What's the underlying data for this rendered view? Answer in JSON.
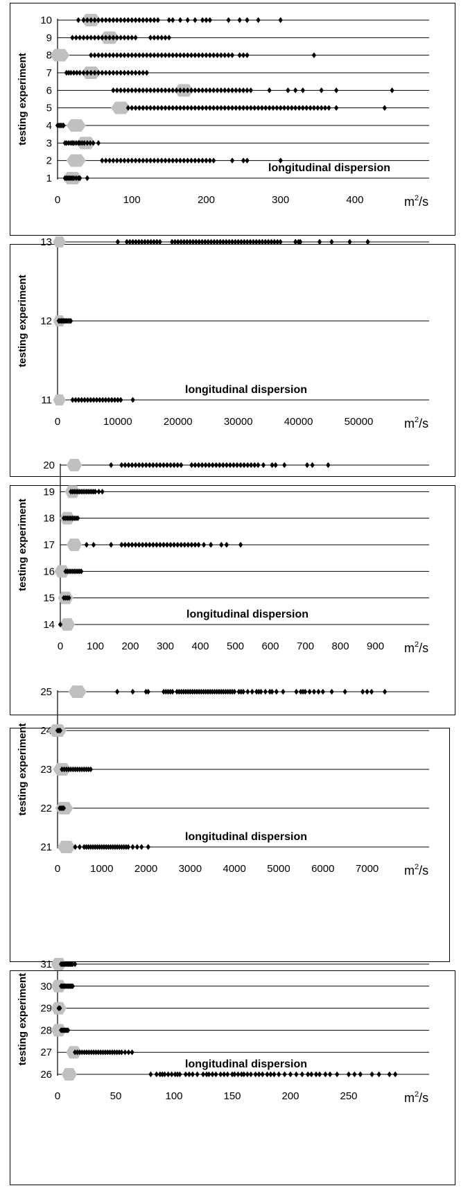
{
  "units_label": "m",
  "units_sup": "2",
  "units_tail": "/s",
  "ylabel": "testing experiment",
  "annotation": "longitudinal dispersion",
  "colors": {
    "points": "#000000",
    "marker": "#c0c0c0",
    "axis": "#000000",
    "gridline": "#000000"
  },
  "chart_data": [
    {
      "type": "scatter",
      "title": "",
      "xlabel": "m2/s",
      "ylabel": "testing experiment",
      "xlim": [
        0,
        470
      ],
      "xticks": [
        0,
        100,
        200,
        300,
        400
      ],
      "xtick_labels": [
        "0",
        "100",
        "200",
        "300",
        "400"
      ],
      "ylim": [
        1,
        10
      ],
      "yticks": [
        1,
        2,
        3,
        4,
        5,
        6,
        7,
        8,
        9,
        10
      ],
      "ytick_labels": [
        "1",
        "2",
        "3",
        "4",
        "5",
        "6",
        "7",
        "8",
        "9",
        "10"
      ],
      "grid": "horizontal",
      "annotation": "longitudinal dispersion",
      "series": [
        {
          "y": 10,
          "marker_x": 45,
          "points": [
            28,
            35,
            40,
            45,
            50,
            55,
            60,
            65,
            70,
            75,
            80,
            85,
            90,
            95,
            100,
            105,
            110,
            115,
            120,
            125,
            130,
            135,
            150,
            155,
            165,
            175,
            185,
            195,
            200,
            205,
            230,
            245,
            255,
            270,
            300
          ]
        },
        {
          "y": 9,
          "marker_x": 70,
          "points": [
            20,
            25,
            30,
            35,
            40,
            45,
            50,
            55,
            60,
            65,
            70,
            75,
            80,
            85,
            90,
            95,
            100,
            105,
            125,
            130,
            135,
            140,
            145,
            150
          ]
        },
        {
          "y": 8,
          "marker_x": 3,
          "points": [
            45,
            50,
            55,
            60,
            65,
            70,
            75,
            80,
            85,
            90,
            95,
            100,
            105,
            110,
            115,
            120,
            125,
            130,
            135,
            140,
            145,
            150,
            155,
            160,
            165,
            170,
            175,
            180,
            185,
            190,
            195,
            200,
            205,
            210,
            215,
            220,
            225,
            230,
            235,
            245,
            250,
            255,
            345
          ]
        },
        {
          "y": 7,
          "marker_x": 45,
          "points": [
            12,
            15,
            18,
            22,
            26,
            30,
            35,
            40,
            45,
            50,
            55,
            60,
            65,
            70,
            75,
            80,
            85,
            90,
            95,
            100,
            105,
            110,
            115,
            120
          ]
        },
        {
          "y": 6,
          "marker_x": 170,
          "points": [
            75,
            80,
            85,
            90,
            95,
            100,
            105,
            110,
            115,
            120,
            125,
            130,
            135,
            140,
            145,
            150,
            155,
            160,
            165,
            170,
            175,
            180,
            185,
            190,
            195,
            200,
            205,
            210,
            215,
            220,
            225,
            230,
            235,
            240,
            245,
            250,
            255,
            260,
            285,
            310,
            320,
            330,
            355,
            375,
            450
          ]
        },
        {
          "y": 5,
          "marker_x": 85,
          "points": [
            95,
            100,
            105,
            110,
            115,
            120,
            125,
            130,
            135,
            140,
            145,
            150,
            155,
            160,
            165,
            170,
            175,
            180,
            185,
            190,
            195,
            200,
            205,
            210,
            215,
            220,
            225,
            230,
            235,
            240,
            245,
            250,
            255,
            260,
            265,
            270,
            275,
            280,
            285,
            290,
            295,
            300,
            305,
            310,
            315,
            320,
            325,
            330,
            335,
            340,
            345,
            350,
            355,
            360,
            365,
            375,
            440
          ]
        },
        {
          "y": 4,
          "marker_x": 25,
          "points": [
            0,
            2,
            4,
            6,
            8
          ]
        },
        {
          "y": 3,
          "marker_x": 38,
          "points": [
            10,
            12,
            15,
            18,
            20,
            22,
            25,
            28,
            30,
            33,
            36,
            40,
            44,
            48,
            55
          ]
        },
        {
          "y": 2,
          "marker_x": 25,
          "points": [
            60,
            65,
            70,
            75,
            80,
            85,
            90,
            95,
            100,
            105,
            110,
            115,
            120,
            125,
            130,
            135,
            140,
            145,
            150,
            155,
            160,
            165,
            170,
            175,
            180,
            185,
            190,
            195,
            200,
            205,
            210,
            235,
            250,
            255,
            300
          ]
        },
        {
          "y": 1,
          "marker_x": 20,
          "points": [
            10,
            12,
            14,
            16,
            18,
            20,
            22,
            25,
            28,
            30,
            40
          ]
        }
      ]
    },
    {
      "type": "scatter",
      "title": "",
      "xlabel": "m2/s",
      "ylabel": "testing experiment",
      "xlim": [
        0,
        58000
      ],
      "xticks": [
        0,
        10000,
        20000,
        30000,
        40000,
        50000
      ],
      "xtick_labels": [
        "0",
        "10000",
        "20000",
        "30000",
        "40000",
        "50000"
      ],
      "ylim": [
        11,
        13
      ],
      "yticks": [
        11,
        12,
        13
      ],
      "ytick_labels": [
        "11",
        "12",
        "13"
      ],
      "grid": "horizontal",
      "annotation": "longitudinal dispersion",
      "series": [
        {
          "y": 13,
          "marker_x": 300,
          "points": [
            10000,
            11500,
            12000,
            12500,
            13000,
            13500,
            14000,
            14500,
            15000,
            15500,
            16000,
            16500,
            17000,
            19000,
            19500,
            20000,
            20500,
            21000,
            21500,
            22000,
            22500,
            23000,
            23500,
            24000,
            24500,
            25000,
            25500,
            26000,
            26500,
            27000,
            27500,
            28000,
            28500,
            29000,
            29500,
            30000,
            30500,
            31000,
            31500,
            32000,
            32500,
            33000,
            33500,
            34000,
            34500,
            35000,
            35500,
            36000,
            36500,
            37000,
            39500,
            40000,
            40300,
            43500,
            45500,
            48500,
            51500
          ]
        },
        {
          "y": 12,
          "marker_x": 300,
          "points": [
            200,
            400,
            600,
            800,
            1000,
            1200,
            1400,
            1600,
            1800,
            2000,
            2200
          ]
        },
        {
          "y": 11,
          "marker_x": 300,
          "points": [
            2500,
            3000,
            3500,
            4000,
            4500,
            5000,
            5500,
            6000,
            6500,
            7000,
            7500,
            8000,
            8500,
            9000,
            9500,
            10000,
            10500,
            12500
          ]
        }
      ]
    },
    {
      "type": "scatter",
      "title": "",
      "xlabel": "m2/s",
      "ylabel": "testing experiment",
      "xlim": [
        0,
        990
      ],
      "xticks": [
        0,
        100,
        200,
        300,
        400,
        500,
        600,
        700,
        800,
        900
      ],
      "xtick_labels": [
        "0",
        "100",
        "200",
        "300",
        "400",
        "500",
        "600",
        "700",
        "800",
        "900"
      ],
      "ylim": [
        14,
        20
      ],
      "yticks": [
        14,
        15,
        16,
        17,
        18,
        19,
        20
      ],
      "ytick_labels": [
        "14",
        "15",
        "16",
        "17",
        "18",
        "19",
        "20"
      ],
      "grid": "horizontal",
      "annotation": "longitudinal dispersion",
      "series": [
        {
          "y": 20,
          "marker_x": 40,
          "points": [
            145,
            175,
            185,
            195,
            205,
            215,
            225,
            235,
            245,
            255,
            265,
            275,
            285,
            295,
            305,
            315,
            325,
            335,
            345,
            375,
            385,
            395,
            405,
            415,
            425,
            435,
            445,
            455,
            465,
            475,
            485,
            495,
            505,
            515,
            525,
            535,
            545,
            555,
            565,
            580,
            605,
            615,
            640,
            705,
            720,
            765
          ]
        },
        {
          "y": 19,
          "marker_x": 35,
          "points": [
            30,
            35,
            40,
            45,
            50,
            55,
            60,
            65,
            70,
            75,
            80,
            85,
            90,
            95,
            100,
            110,
            120
          ]
        },
        {
          "y": 18,
          "marker_x": 20,
          "points": [
            10,
            15,
            20,
            25,
            30,
            35,
            40,
            45,
            50
          ]
        },
        {
          "y": 17,
          "marker_x": 40,
          "points": [
            75,
            95,
            145,
            175,
            185,
            195,
            205,
            215,
            225,
            235,
            245,
            255,
            265,
            275,
            285,
            295,
            305,
            315,
            325,
            335,
            345,
            355,
            365,
            375,
            385,
            395,
            410,
            430,
            460,
            475,
            515
          ]
        },
        {
          "y": 16,
          "marker_x": 5,
          "points": [
            15,
            20,
            25,
            30,
            35,
            40,
            45,
            50,
            55,
            60
          ]
        },
        {
          "y": 15,
          "marker_x": 15,
          "points": [
            10,
            15,
            20,
            25
          ]
        },
        {
          "y": 14,
          "marker_x": 20,
          "points": [
            0
          ]
        }
      ]
    },
    {
      "type": "scatter",
      "title": "",
      "xlabel": "m2/s",
      "ylabel": "testing experiment",
      "xlim": [
        0,
        7900
      ],
      "xticks": [
        0,
        1000,
        2000,
        3000,
        4000,
        5000,
        6000,
        7000
      ],
      "xtick_labels": [
        "0",
        "1000",
        "2000",
        "3000",
        "4000",
        "5000",
        "6000",
        "7000"
      ],
      "ylim": [
        21,
        25
      ],
      "yticks": [
        21,
        22,
        23,
        24,
        25
      ],
      "ytick_labels": [
        "21",
        "22",
        "23",
        "24",
        "25"
      ],
      "grid": "horizontal",
      "annotation": "longitudinal dispersion",
      "series": [
        {
          "y": 25,
          "marker_x": 450,
          "points": [
            1350,
            1700,
            2000,
            2050,
            2400,
            2450,
            2500,
            2550,
            2600,
            2700,
            2750,
            2800,
            2850,
            2900,
            2950,
            3000,
            3050,
            3100,
            3150,
            3200,
            3250,
            3300,
            3350,
            3400,
            3450,
            3500,
            3550,
            3600,
            3650,
            3700,
            3750,
            3800,
            3850,
            3900,
            3950,
            4000,
            4100,
            4150,
            4200,
            4300,
            4400,
            4500,
            4550,
            4600,
            4700,
            4800,
            4850,
            4950,
            5100,
            5400,
            5500,
            5550,
            5600,
            5700,
            5800,
            5900,
            6000,
            6200,
            6500,
            6900,
            7000,
            7100,
            7400
          ]
        },
        {
          "y": 24,
          "marker_x": 0,
          "points": [
            0,
            30,
            60
          ]
        },
        {
          "y": 23,
          "marker_x": 100,
          "points": [
            100,
            150,
            200,
            250,
            300,
            350,
            400,
            450,
            500,
            550,
            600,
            650,
            700,
            750
          ]
        },
        {
          "y": 22,
          "marker_x": 150,
          "points": [
            50,
            80,
            110,
            140
          ]
        },
        {
          "y": 21,
          "marker_x": 200,
          "points": [
            400,
            500,
            600,
            650,
            700,
            750,
            800,
            850,
            900,
            950,
            1000,
            1050,
            1100,
            1150,
            1200,
            1250,
            1300,
            1350,
            1400,
            1450,
            1500,
            1550,
            1600,
            1700,
            1800,
            1900,
            2050
          ]
        }
      ]
    },
    {
      "type": "scatter",
      "title": "",
      "xlabel": "m2/s",
      "ylabel": "testing experiment",
      "xlim": [
        0,
        300
      ],
      "xticks": [
        0,
        50,
        100,
        150,
        200,
        250
      ],
      "xtick_labels": [
        "0",
        "50",
        "100",
        "150",
        "200",
        "250"
      ],
      "ylim": [
        26,
        31
      ],
      "yticks": [
        26,
        27,
        28,
        29,
        30,
        31
      ],
      "ytick_labels": [
        "26",
        "27",
        "28",
        "29",
        "30",
        "31"
      ],
      "grid": "horizontal",
      "annotation": "longitudinal dispersion",
      "series": [
        {
          "y": 31,
          "marker_x": 1,
          "points": [
            3,
            4,
            5,
            6,
            7,
            8,
            9,
            10,
            11,
            12,
            13,
            15
          ]
        },
        {
          "y": 30,
          "marker_x": 1,
          "points": [
            3,
            4,
            5,
            6,
            7,
            8,
            9,
            10,
            11,
            12,
            13
          ]
        },
        {
          "y": 29,
          "marker_x": 1,
          "points": [
            1,
            2
          ]
        },
        {
          "y": 28,
          "marker_x": 1,
          "points": [
            3,
            4,
            5,
            6,
            7,
            8,
            9
          ]
        },
        {
          "y": 27,
          "marker_x": 14,
          "points": [
            15,
            17,
            19,
            21,
            23,
            25,
            27,
            29,
            31,
            33,
            35,
            37,
            39,
            41,
            43,
            45,
            47,
            49,
            51,
            53,
            55,
            58,
            61,
            64
          ]
        },
        {
          "y": 26,
          "marker_x": 10,
          "points": [
            80,
            85,
            88,
            90,
            92,
            95,
            98,
            101,
            103,
            105,
            110,
            113,
            116,
            120,
            125,
            128,
            130,
            133,
            136,
            140,
            143,
            146,
            150,
            152,
            155,
            158,
            160,
            163,
            166,
            170,
            173,
            176,
            180,
            183,
            186,
            190,
            195,
            200,
            205,
            210,
            215,
            218,
            222,
            225,
            230,
            234,
            240,
            250,
            255,
            260,
            270,
            276,
            285,
            290
          ]
        }
      ]
    }
  ]
}
